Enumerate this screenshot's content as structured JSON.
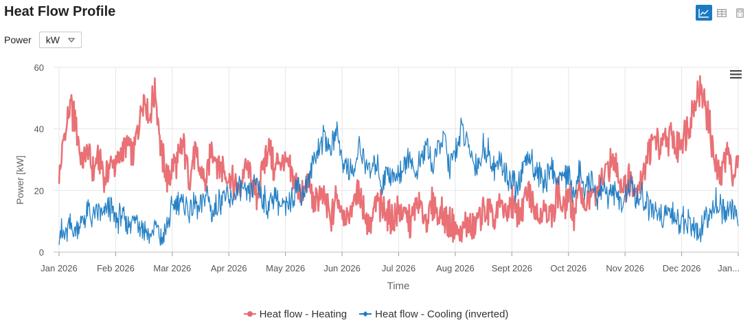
{
  "header": {
    "title": "Heat Flow Profile"
  },
  "view_switch": {
    "buttons": [
      "chart",
      "table",
      "calculator"
    ],
    "active": "chart"
  },
  "controls": {
    "unit_label": "Power",
    "unit_value": "kW"
  },
  "colors": {
    "heating": "#e8696f",
    "cooling": "#1a7ac2",
    "grid": "#e6e6e6",
    "axis_text": "#555555",
    "active_button": "#1a7ac2"
  },
  "chart_data": {
    "type": "line",
    "title": "",
    "xlabel": "Time",
    "ylabel": "Power [kW]",
    "ylim": [
      0,
      60
    ],
    "y_ticks": [
      0,
      20,
      40,
      60
    ],
    "x_ticks": [
      "Jan 2026",
      "Feb 2026",
      "Mar 2026",
      "Apr 2026",
      "May 2026",
      "Jun 2026",
      "Jul 2026",
      "Aug 2026",
      "Sept 2026",
      "Oct 2026",
      "Nov 2026",
      "Dec 2026",
      "Jan..."
    ],
    "x_unit": "month index (0 = Jan 2026, 12 = Jan 2027)",
    "xlim": [
      0,
      12
    ],
    "series": [
      {
        "name": "Heat flow - Heating",
        "color": "#e8696f",
        "x": [
          0,
          0.1,
          0.2,
          0.3,
          0.4,
          0.5,
          0.6,
          0.7,
          0.8,
          0.9,
          1.0,
          1.1,
          1.2,
          1.3,
          1.4,
          1.5,
          1.6,
          1.7,
          1.8,
          1.9,
          2.0,
          2.1,
          2.2,
          2.3,
          2.4,
          2.5,
          2.6,
          2.7,
          2.8,
          2.9,
          3.0,
          3.1,
          3.2,
          3.3,
          3.4,
          3.5,
          3.6,
          3.7,
          3.8,
          3.9,
          4.0,
          4.1,
          4.2,
          4.3,
          4.4,
          4.5,
          4.6,
          4.7,
          4.8,
          4.9,
          5.0,
          5.1,
          5.2,
          5.3,
          5.4,
          5.5,
          5.6,
          5.7,
          5.8,
          5.9,
          6.0,
          6.1,
          6.2,
          6.3,
          6.4,
          6.5,
          6.6,
          6.7,
          6.8,
          6.9,
          7.0,
          7.1,
          7.2,
          7.3,
          7.4,
          7.5,
          7.6,
          7.7,
          7.8,
          7.9,
          8.0,
          8.1,
          8.2,
          8.3,
          8.4,
          8.5,
          8.6,
          8.7,
          8.8,
          8.9,
          9.0,
          9.1,
          9.2,
          9.3,
          9.4,
          9.5,
          9.6,
          9.7,
          9.8,
          9.9,
          10.0,
          10.1,
          10.2,
          10.3,
          10.4,
          10.5,
          10.6,
          10.7,
          10.8,
          10.9,
          11.0,
          11.1,
          11.2,
          11.3,
          11.4,
          11.5,
          11.6,
          11.7,
          11.8,
          11.9,
          12.0
        ],
        "values": [
          23,
          38,
          47,
          41,
          29,
          33,
          26,
          31,
          24,
          28,
          29,
          32,
          36,
          31,
          40,
          52,
          44,
          53,
          33,
          24,
          27,
          30,
          35,
          24,
          32,
          26,
          22,
          34,
          29,
          27,
          24,
          22,
          20,
          28,
          24,
          18,
          27,
          35,
          26,
          30,
          28,
          25,
          22,
          18,
          24,
          14,
          20,
          16,
          10,
          18,
          14,
          10,
          16,
          20,
          12,
          9,
          16,
          14,
          12,
          10,
          14,
          12,
          9,
          15,
          14,
          10,
          16,
          13,
          12,
          9,
          8,
          5,
          10,
          7,
          11,
          14,
          13,
          10,
          16,
          12,
          17,
          12,
          15,
          20,
          14,
          12,
          16,
          10,
          21,
          13,
          18,
          12,
          21,
          15,
          18,
          19,
          22,
          28,
          30,
          24,
          21,
          25,
          20,
          24,
          32,
          37,
          34,
          35,
          38,
          34,
          36,
          40,
          46,
          53,
          50,
          40,
          27,
          25,
          34,
          26,
          28
        ]
      },
      {
        "name": "Heat flow - Cooling (inverted)",
        "color": "#1a7ac2",
        "x": [
          0,
          0.1,
          0.2,
          0.3,
          0.4,
          0.5,
          0.6,
          0.7,
          0.8,
          0.9,
          1.0,
          1.1,
          1.2,
          1.3,
          1.4,
          1.5,
          1.6,
          1.7,
          1.8,
          1.9,
          2.0,
          2.1,
          2.2,
          2.3,
          2.4,
          2.5,
          2.6,
          2.7,
          2.8,
          2.9,
          3.0,
          3.1,
          3.2,
          3.3,
          3.4,
          3.5,
          3.6,
          3.7,
          3.8,
          3.9,
          4.0,
          4.1,
          4.2,
          4.3,
          4.4,
          4.5,
          4.6,
          4.7,
          4.8,
          4.9,
          5.0,
          5.1,
          5.2,
          5.3,
          5.4,
          5.5,
          5.6,
          5.7,
          5.8,
          5.9,
          6.0,
          6.1,
          6.2,
          6.3,
          6.4,
          6.5,
          6.6,
          6.7,
          6.8,
          6.9,
          7.0,
          7.1,
          7.2,
          7.3,
          7.4,
          7.5,
          7.6,
          7.7,
          7.8,
          7.9,
          8.0,
          8.1,
          8.2,
          8.3,
          8.4,
          8.5,
          8.6,
          8.7,
          8.8,
          8.9,
          9.0,
          9.1,
          9.2,
          9.3,
          9.4,
          9.5,
          9.6,
          9.7,
          9.8,
          9.9,
          10.0,
          10.1,
          10.2,
          10.3,
          10.4,
          10.5,
          10.6,
          10.7,
          10.8,
          10.9,
          11.0,
          11.1,
          11.2,
          11.3,
          11.4,
          11.5,
          11.6,
          11.7,
          11.8,
          11.9,
          12.0
        ],
        "values": [
          7,
          5,
          9,
          6,
          10,
          13,
          11,
          14,
          12,
          15,
          10,
          12,
          9,
          11,
          10,
          8,
          5,
          9,
          3,
          8,
          14,
          17,
          15,
          13,
          16,
          14,
          20,
          12,
          15,
          19,
          16,
          18,
          22,
          17,
          20,
          23,
          17,
          15,
          19,
          16,
          14,
          18,
          22,
          19,
          23,
          30,
          34,
          38,
          32,
          41,
          30,
          28,
          25,
          34,
          30,
          26,
          30,
          22,
          27,
          24,
          26,
          28,
          32,
          24,
          30,
          35,
          28,
          33,
          38,
          27,
          32,
          40,
          36,
          30,
          28,
          34,
          32,
          27,
          30,
          25,
          22,
          20,
          27,
          32,
          28,
          24,
          23,
          28,
          22,
          26,
          24,
          20,
          26,
          19,
          24,
          17,
          22,
          18,
          20,
          15,
          19,
          21,
          16,
          18,
          15,
          13,
          12,
          11,
          13,
          10,
          11,
          9,
          8,
          5,
          10,
          12,
          17,
          14,
          12,
          15,
          10
        ]
      }
    ],
    "legend_position": "bottom-center"
  }
}
